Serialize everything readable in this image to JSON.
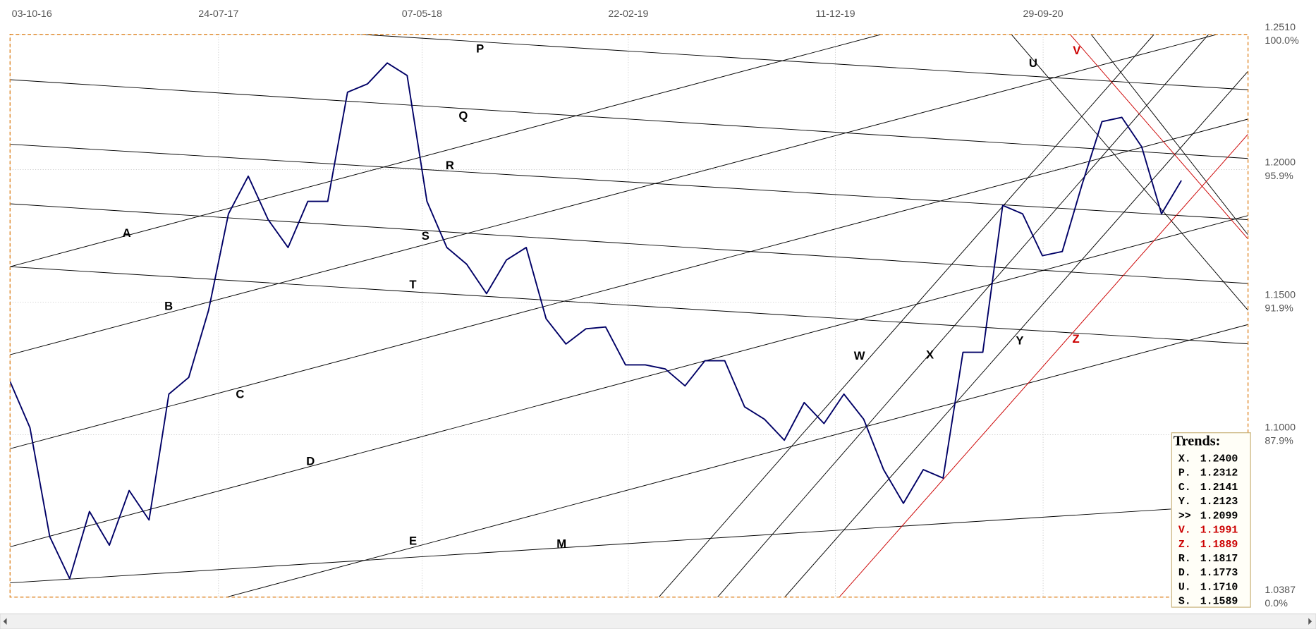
{
  "chart_data": {
    "type": "line",
    "xticks": [
      "03-10-16",
      "24-07-17",
      "07-05-18",
      "22-02-19",
      "11-12-19",
      "29-09-20"
    ],
    "xlim": [
      "03-10-16",
      "15-07-21"
    ],
    "ylim": [
      1.0387,
      1.251
    ],
    "yticks": [
      {
        "value": 1.0387,
        "label": "1.0387"
      },
      {
        "value": 1.1,
        "label": "1.1000"
      },
      {
        "value": 1.15,
        "label": "1.1500"
      },
      {
        "value": 1.2,
        "label": "1.2000"
      },
      {
        "value": 1.251,
        "label": "1.2510"
      }
    ],
    "y_pct_labels": [
      "0.0%",
      "87.9%",
      "91.9%",
      "95.9%",
      "100.0%"
    ],
    "grid": true,
    "series": [
      {
        "color": "#000066",
        "x": [
          "03-10-16",
          "31-10-16",
          "28-11-16",
          "26-12-16",
          "23-01-17",
          "20-02-17",
          "20-03-17",
          "17-04-17",
          "15-05-17",
          "12-06-17",
          "10-07-17",
          "07-08-17",
          "04-09-17",
          "02-10-17",
          "30-10-17",
          "27-11-17",
          "25-12-17",
          "22-01-18",
          "19-02-18",
          "19-03-18",
          "16-04-18",
          "14-05-18",
          "11-06-18",
          "09-07-18",
          "06-08-18",
          "03-09-18",
          "01-10-18",
          "29-10-18",
          "26-11-18",
          "24-12-18",
          "21-01-19",
          "18-02-19",
          "18-03-19",
          "15-04-19",
          "13-05-19",
          "10-06-19",
          "08-07-19",
          "05-08-19",
          "02-09-19",
          "30-09-19",
          "28-10-19",
          "25-11-19",
          "23-12-19",
          "20-01-20",
          "17-02-20",
          "16-03-20",
          "13-04-20",
          "11-05-20",
          "08-06-20",
          "06-07-20",
          "03-08-20",
          "31-08-20",
          "28-09-20",
          "26-10-20",
          "23-11-20",
          "21-12-20",
          "18-01-21",
          "15-02-21",
          "15-03-21",
          "12-04-21"
        ],
        "values": [
          1.12,
          1.1026,
          1.0615,
          1.0457,
          1.071,
          1.0583,
          1.0789,
          1.0678,
          1.1153,
          1.1216,
          1.1469,
          1.1833,
          1.1975,
          1.1811,
          1.1706,
          1.188,
          1.188,
          1.2292,
          1.2323,
          1.2402,
          1.2355,
          1.188,
          1.1706,
          1.1643,
          1.1532,
          1.1659,
          1.1706,
          1.1437,
          1.1342,
          1.1399,
          1.1406,
          1.1263,
          1.1263,
          1.1248,
          1.1184,
          1.1279,
          1.1279,
          1.1105,
          1.1058,
          1.0979,
          1.1121,
          1.1042,
          1.1153,
          1.1058,
          1.0868,
          1.0741,
          1.0868,
          1.0836,
          1.1311,
          1.1311,
          1.1865,
          1.1833,
          1.1675,
          1.1691,
          1.1944,
          1.2181,
          1.2197,
          1.2086,
          1.1833,
          1.1959
        ]
      }
    ],
    "trend_labels": [
      {
        "text": "P",
        "color": "#000000"
      },
      {
        "text": "Q",
        "color": "#000000"
      },
      {
        "text": "R",
        "color": "#000000"
      },
      {
        "text": "S",
        "color": "#000000"
      },
      {
        "text": "T",
        "color": "#000000"
      },
      {
        "text": "A",
        "color": "#000000"
      },
      {
        "text": "B",
        "color": "#000000"
      },
      {
        "text": "C",
        "color": "#000000"
      },
      {
        "text": "D",
        "color": "#000000"
      },
      {
        "text": "E",
        "color": "#000000"
      },
      {
        "text": "M",
        "color": "#000000"
      },
      {
        "text": "U",
        "color": "#000000"
      },
      {
        "text": "V",
        "color": "#cc0000"
      },
      {
        "text": "W",
        "color": "#000000"
      },
      {
        "text": "X",
        "color": "#000000"
      },
      {
        "text": "Y",
        "color": "#000000"
      },
      {
        "text": "Z",
        "color": "#cc0000"
      }
    ],
    "trends_panel": {
      "title": "Trends:",
      "rows": [
        {
          "name": "X.",
          "value": "1.2400",
          "color": "#000000"
        },
        {
          "name": "P.",
          "value": "1.2312",
          "color": "#000000"
        },
        {
          "name": "C.",
          "value": "1.2141",
          "color": "#000000"
        },
        {
          "name": "Y.",
          "value": "1.2123",
          "color": "#000000"
        },
        {
          "name": ">>",
          "value": "1.2099",
          "color": "#000000"
        },
        {
          "name": "V.",
          "value": "1.1991",
          "color": "#cc0000"
        },
        {
          "name": "Z.",
          "value": "1.1889",
          "color": "#cc0000"
        },
        {
          "name": "R.",
          "value": "1.1817",
          "color": "#000000"
        },
        {
          "name": "D.",
          "value": "1.1773",
          "color": "#000000"
        },
        {
          "name": "U.",
          "value": "1.1710",
          "color": "#000000"
        },
        {
          "name": "S.",
          "value": "1.1589",
          "color": "#000000"
        }
      ]
    }
  }
}
